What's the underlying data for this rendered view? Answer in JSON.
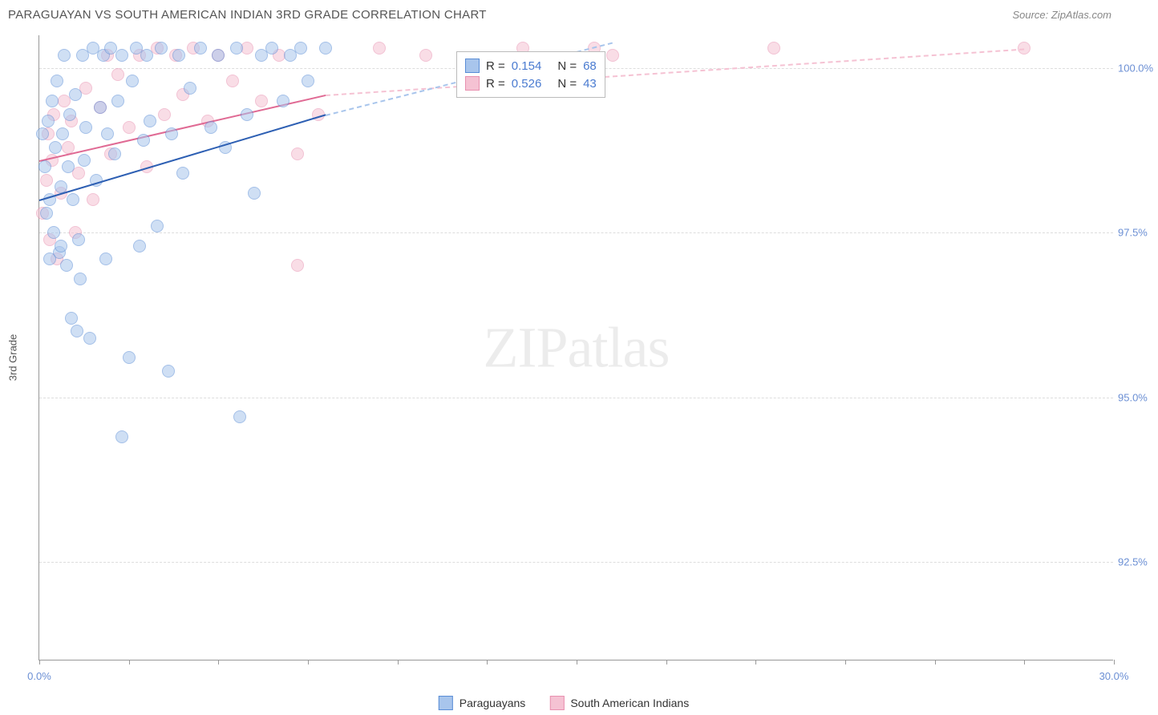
{
  "header": {
    "title": "PARAGUAYAN VS SOUTH AMERICAN INDIAN 3RD GRADE CORRELATION CHART",
    "source": "Source: ZipAtlas.com"
  },
  "axes": {
    "y_label": "3rd Grade",
    "x_min": 0.0,
    "x_max": 30.0,
    "y_min": 91.0,
    "y_max": 100.5,
    "x_ticks": [
      0.0,
      2.5,
      5.0,
      7.5,
      10.0,
      12.5,
      15.0,
      17.5,
      20.0,
      22.5,
      25.0,
      27.5,
      30.0
    ],
    "x_tick_labels": {
      "0": "0.0%",
      "30": "30.0%"
    },
    "y_gridlines": [
      92.5,
      95.0,
      97.5,
      100.0
    ],
    "y_tick_labels": {
      "92.5": "92.5%",
      "95.0": "95.0%",
      "97.5": "97.5%",
      "100.0": "100.0%"
    }
  },
  "series": {
    "paraguayans": {
      "label": "Paraguayans",
      "fill_color": "#a8c5ec",
      "stroke_color": "#5a8dd6",
      "line_color": "#2d5fb3",
      "r_value": "0.154",
      "n_value": "68",
      "regression": {
        "x1": 0.0,
        "y1": 98.0,
        "x2": 8.0,
        "y2": 99.3
      },
      "dashed_extension": {
        "x1": 8.0,
        "y1": 99.3,
        "x2": 16.0,
        "y2": 100.4
      },
      "points": [
        [
          0.1,
          99.0
        ],
        [
          0.15,
          98.5
        ],
        [
          0.2,
          97.8
        ],
        [
          0.25,
          99.2
        ],
        [
          0.3,
          98.0
        ],
        [
          0.35,
          99.5
        ],
        [
          0.4,
          97.5
        ],
        [
          0.45,
          98.8
        ],
        [
          0.5,
          99.8
        ],
        [
          0.55,
          97.2
        ],
        [
          0.6,
          98.2
        ],
        [
          0.65,
          99.0
        ],
        [
          0.7,
          100.2
        ],
        [
          0.75,
          97.0
        ],
        [
          0.8,
          98.5
        ],
        [
          0.85,
          99.3
        ],
        [
          0.9,
          96.2
        ],
        [
          0.95,
          98.0
        ],
        [
          1.0,
          99.6
        ],
        [
          1.1,
          97.4
        ],
        [
          1.2,
          100.2
        ],
        [
          1.25,
          98.6
        ],
        [
          1.3,
          99.1
        ],
        [
          1.4,
          95.9
        ],
        [
          1.5,
          100.3
        ],
        [
          1.6,
          98.3
        ],
        [
          1.7,
          99.4
        ],
        [
          1.8,
          100.2
        ],
        [
          1.85,
          97.1
        ],
        [
          1.9,
          99.0
        ],
        [
          2.0,
          100.3
        ],
        [
          2.1,
          98.7
        ],
        [
          2.2,
          99.5
        ],
        [
          2.3,
          100.2
        ],
        [
          2.5,
          95.6
        ],
        [
          2.6,
          99.8
        ],
        [
          2.7,
          100.3
        ],
        [
          2.8,
          97.3
        ],
        [
          2.9,
          98.9
        ],
        [
          3.0,
          100.2
        ],
        [
          3.1,
          99.2
        ],
        [
          3.3,
          97.6
        ],
        [
          3.4,
          100.3
        ],
        [
          3.6,
          95.4
        ],
        [
          3.7,
          99.0
        ],
        [
          3.9,
          100.2
        ],
        [
          4.0,
          98.4
        ],
        [
          4.2,
          99.7
        ],
        [
          4.5,
          100.3
        ],
        [
          4.8,
          99.1
        ],
        [
          5.0,
          100.2
        ],
        [
          5.2,
          98.8
        ],
        [
          5.5,
          100.3
        ],
        [
          5.6,
          94.7
        ],
        [
          5.8,
          99.3
        ],
        [
          6.0,
          98.1
        ],
        [
          6.2,
          100.2
        ],
        [
          6.5,
          100.3
        ],
        [
          6.8,
          99.5
        ],
        [
          7.0,
          100.2
        ],
        [
          7.3,
          100.3
        ],
        [
          7.5,
          99.8
        ],
        [
          8.0,
          100.3
        ],
        [
          0.3,
          97.1
        ],
        [
          0.6,
          97.3
        ],
        [
          2.3,
          94.4
        ],
        [
          1.05,
          96.0
        ],
        [
          1.15,
          96.8
        ]
      ]
    },
    "south_american_indians": {
      "label": "South American Indians",
      "fill_color": "#f5c2d3",
      "stroke_color": "#e891b0",
      "line_color": "#e06a94",
      "r_value": "0.526",
      "n_value": "43",
      "regression": {
        "x1": 0.0,
        "y1": 98.6,
        "x2": 8.0,
        "y2": 99.6
      },
      "dashed_extension": {
        "x1": 8.0,
        "y1": 99.6,
        "x2": 27.5,
        "y2": 100.3
      },
      "points": [
        [
          0.1,
          97.8
        ],
        [
          0.2,
          98.3
        ],
        [
          0.25,
          99.0
        ],
        [
          0.3,
          97.4
        ],
        [
          0.35,
          98.6
        ],
        [
          0.4,
          99.3
        ],
        [
          0.5,
          97.1
        ],
        [
          0.6,
          98.1
        ],
        [
          0.7,
          99.5
        ],
        [
          0.8,
          98.8
        ],
        [
          0.9,
          99.2
        ],
        [
          1.0,
          97.5
        ],
        [
          1.1,
          98.4
        ],
        [
          1.3,
          99.7
        ],
        [
          1.5,
          98.0
        ],
        [
          1.7,
          99.4
        ],
        [
          1.9,
          100.2
        ],
        [
          2.0,
          98.7
        ],
        [
          2.2,
          99.9
        ],
        [
          2.5,
          99.1
        ],
        [
          2.8,
          100.2
        ],
        [
          3.0,
          98.5
        ],
        [
          3.3,
          100.3
        ],
        [
          3.5,
          99.3
        ],
        [
          3.8,
          100.2
        ],
        [
          4.0,
          99.6
        ],
        [
          4.3,
          100.3
        ],
        [
          4.7,
          99.2
        ],
        [
          5.0,
          100.2
        ],
        [
          5.4,
          99.8
        ],
        [
          5.8,
          100.3
        ],
        [
          6.2,
          99.5
        ],
        [
          6.7,
          100.2
        ],
        [
          7.2,
          98.7
        ],
        [
          7.2,
          97.0
        ],
        [
          7.8,
          99.3
        ],
        [
          9.5,
          100.3
        ],
        [
          10.8,
          100.2
        ],
        [
          13.5,
          100.3
        ],
        [
          15.5,
          100.3
        ],
        [
          16.0,
          100.2
        ],
        [
          20.5,
          100.3
        ],
        [
          27.5,
          100.3
        ]
      ]
    }
  },
  "stats_legend": {
    "r_prefix": "R =",
    "n_prefix": "N ="
  },
  "watermark": {
    "bold": "ZIP",
    "rest": "atlas"
  },
  "colors": {
    "grid": "#dddddd",
    "axis": "#999999",
    "tick_text": "#6b8fd4",
    "title_text": "#555555",
    "background": "#ffffff"
  }
}
